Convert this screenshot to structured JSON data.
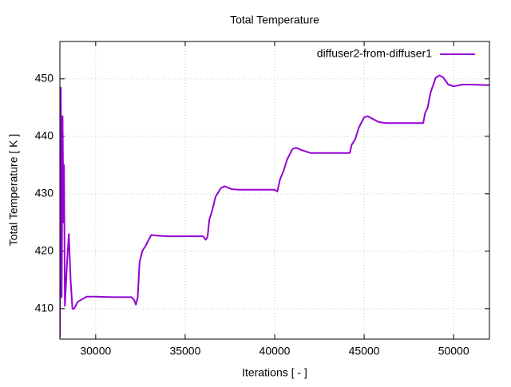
{
  "chart_data": {
    "type": "line",
    "title": "Total Temperature",
    "x_label": "Iterations [ - ]",
    "y_label": "Total Temperature [ K ]",
    "x": [
      28000,
      28050,
      28100,
      28150,
      28200,
      28230,
      28280,
      28400,
      28500,
      28600,
      28700,
      28800,
      29000,
      29500,
      30000,
      31000,
      32000,
      32150,
      32250,
      32350,
      32450,
      32600,
      32800,
      33100,
      33500,
      34000,
      35000,
      36000,
      36150,
      36250,
      36350,
      36500,
      36700,
      37000,
      37200,
      37600,
      38000,
      39000,
      40000,
      40150,
      40300,
      40500,
      40700,
      41000,
      41200,
      41500,
      42000,
      43000,
      44000,
      44200,
      44300,
      44500,
      44700,
      45000,
      45200,
      45500,
      45800,
      46200,
      47000,
      48000,
      48300,
      48400,
      48550,
      48700,
      49000,
      49200,
      49400,
      49700,
      50000,
      50500,
      51000,
      52000
    ],
    "series": [
      {
        "name": "diffuser2-from-diffuser1",
        "color": "#9400d3",
        "values": [
          405,
          448.5,
          412,
          443.5,
          425,
          435,
          410.5,
          418,
          423,
          415,
          410,
          410,
          411.2,
          412.1,
          412.1,
          412,
          412,
          411.5,
          410.7,
          412,
          418,
          420,
          421,
          422.8,
          422.7,
          422.6,
          422.6,
          422.6,
          422,
          422.5,
          425.5,
          427,
          429.5,
          431,
          431.3,
          430.8,
          430.7,
          430.7,
          430.7,
          430.4,
          432.5,
          434,
          436,
          437.8,
          438,
          437.6,
          437.1,
          437.1,
          437.1,
          437.1,
          438.5,
          439.5,
          441.5,
          443.3,
          443.5,
          443,
          442.5,
          442.3,
          442.3,
          442.3,
          442.3,
          444,
          445,
          447.5,
          450.2,
          450.6,
          450.3,
          449,
          448.7,
          449,
          449,
          448.9
        ]
      }
    ],
    "xlim": [
      28000,
      52000
    ],
    "ylim": [
      404.7,
      456.5
    ],
    "xticks": [
      30000,
      35000,
      40000,
      45000,
      50000
    ],
    "yticks": [
      410,
      420,
      430,
      440,
      450
    ],
    "grid": true,
    "legend": "top-right"
  }
}
